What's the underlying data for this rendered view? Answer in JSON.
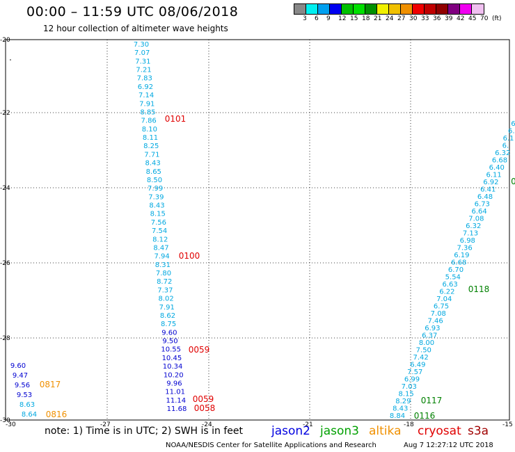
{
  "header": {
    "title": "00:00 – 11:59 UTC 08/06/2018",
    "subtitle": "12 hour collection of altimeter wave heights"
  },
  "colorbar": {
    "colors": [
      "#888888",
      "#00f0f0",
      "#00a0f0",
      "#0000f0",
      "#00c000",
      "#00e000",
      "#009000",
      "#f0f000",
      "#f0c000",
      "#f09000",
      "#f00000",
      "#c00000",
      "#900000",
      "#800080",
      "#f000f0",
      "#f0c0f0"
    ],
    "labels": [
      "3",
      "6",
      "9",
      "12",
      "15",
      "18",
      "21",
      "24",
      "27",
      "30",
      "33",
      "36",
      "39",
      "42",
      "45",
      "70",
      "(ft)"
    ]
  },
  "axes": {
    "x_ticks": [
      "-30",
      "-27",
      "-24",
      "-21",
      "-18",
      "-15"
    ],
    "y_ticks": [
      "-20",
      "-22",
      "-24",
      "-26",
      "-28",
      "-30"
    ]
  },
  "tracks": {
    "track_a": {
      "values": [
        "7.30",
        "7.07",
        "7.31",
        "7.21",
        "7.83",
        "6.92",
        "7.14",
        "7.91",
        "8.85",
        "7.86",
        "8.10",
        "8.11",
        "8.25",
        "7.71",
        "8.43",
        "8.65",
        "8.50",
        "7.99",
        "7.39",
        "8.43",
        "8.15",
        "7.56",
        "7.54",
        "8.12",
        "8.47",
        "7.94",
        "8.31",
        "7.80",
        "8.72",
        "7.37",
        "8.02",
        "7.91",
        "8.62",
        "8.75",
        "9.60",
        "9.50",
        "10.55",
        "10.45",
        "10.34",
        "10.20",
        "9.96",
        "11.01",
        "11.14",
        "11.68"
      ],
      "colors": [
        "c",
        "c",
        "c",
        "c",
        "c",
        "c",
        "c",
        "c",
        "c",
        "c",
        "c",
        "c",
        "c",
        "c",
        "c",
        "c",
        "c",
        "c",
        "c",
        "c",
        "c",
        "c",
        "c",
        "c",
        "c",
        "c",
        "c",
        "c",
        "c",
        "c",
        "c",
        "c",
        "c",
        "c",
        "b",
        "b",
        "b",
        "b",
        "b",
        "b",
        "b",
        "b",
        "b",
        "b"
      ]
    },
    "track_a_labels": [
      {
        "text": "0101",
        "color": "#e00000"
      },
      {
        "text": "0100",
        "color": "#e00000"
      },
      {
        "text": "0059",
        "color": "#e00000"
      },
      {
        "text": "0059",
        "color": "#e00000"
      },
      {
        "text": "0058",
        "color": "#e00000"
      }
    ],
    "track_b": {
      "values": [
        "6.",
        "6.",
        "6.1",
        "6.",
        "6.32",
        "6.68",
        "6.40",
        "6.11",
        "6.92",
        "6.41",
        "6.48",
        "6.73",
        "6.64",
        "7.08",
        "6.32",
        "7.13",
        "6.98",
        "7.36",
        "6.19",
        "6.68",
        "6.70",
        "5.54",
        "6.63",
        "6.22",
        "7.04",
        "6.75",
        "7.08",
        "7.46",
        "6.93",
        "6.37",
        "8.00",
        "7.50",
        "7.42",
        "6.49",
        "7.57",
        "6.99",
        "7.03",
        "8.15",
        "8.29",
        "8.43",
        "8.84"
      ]
    },
    "track_b_labels": [
      {
        "text": "0",
        "color": "#008000"
      },
      {
        "text": "0118",
        "color": "#008000"
      },
      {
        "text": "0117",
        "color": "#008000"
      },
      {
        "text": "0116",
        "color": "#008000"
      }
    ],
    "track_c": {
      "values": [
        "9.60",
        "9.47",
        "9.56",
        "9.53",
        "8.63",
        "8.64"
      ],
      "colors": [
        "b",
        "b",
        "b",
        "b",
        "c",
        "c"
      ]
    },
    "track_c_labels": [
      {
        "text": "0817",
        "color": "#f09000"
      },
      {
        "text": "0816",
        "color": "#f09000"
      }
    ]
  },
  "footer": {
    "note": "note: 1) Time is in UTC; 2) SWH is in feet",
    "legend": [
      {
        "name": "jason2",
        "color": "#0000e0"
      },
      {
        "name": "jason3",
        "color": "#00a000"
      },
      {
        "name": "altika",
        "color": "#f09000"
      },
      {
        "name": "cryosat",
        "color": "#e00000"
      },
      {
        "name": "s3a",
        "color": "#a00000"
      }
    ],
    "credit": "NOAA/NESDIS Center for Satellite Applications and Research",
    "timestamp": "Aug  7 12:27:12 UTC 2018"
  }
}
